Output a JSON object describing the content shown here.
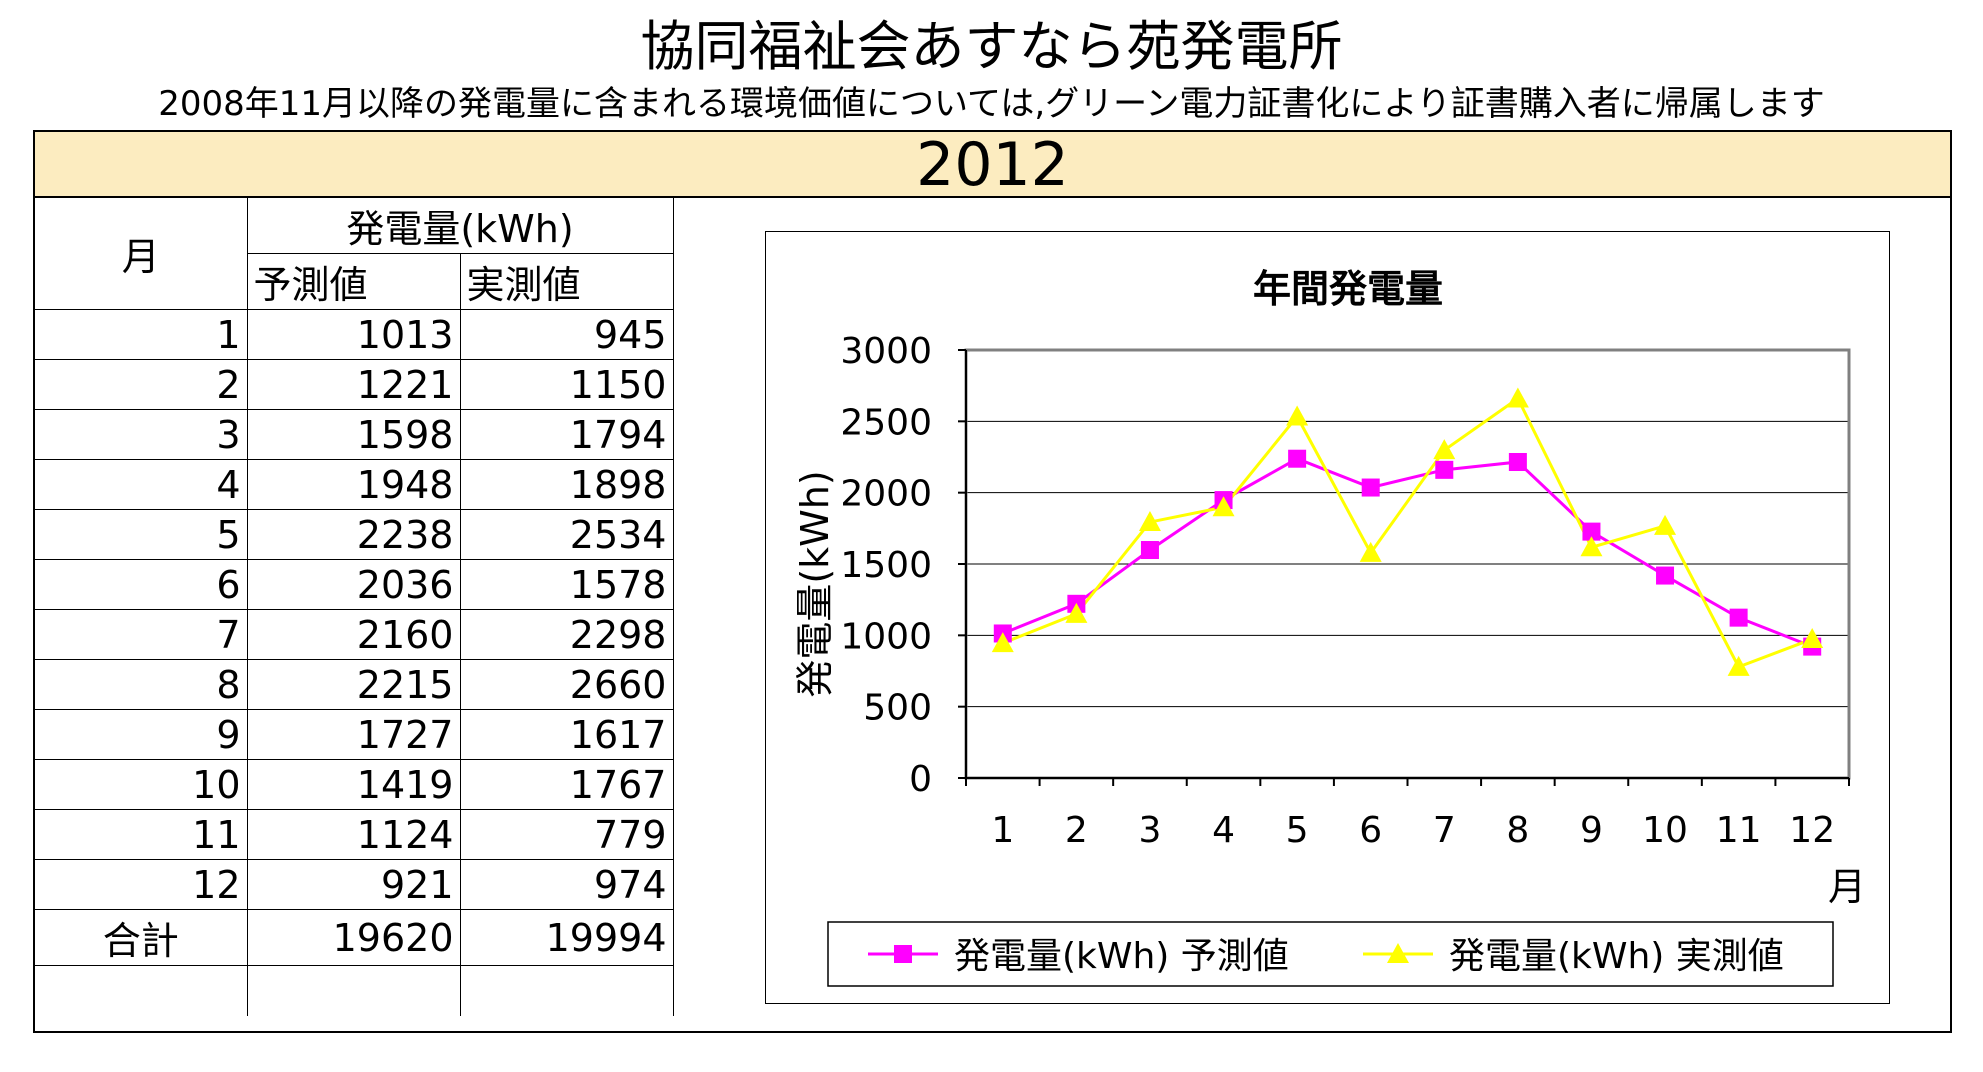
{
  "title": "協同福祉会あすなら苑発電所",
  "subtitle": "2008年11月以降の発電量に含まれる環境価値については,グリーン電力証書化により証書購入者に帰属します",
  "year": "2012",
  "table": {
    "month_header": "月",
    "group_header": "発電量(kWh)",
    "col_forecast": "予測値",
    "col_actual": "実測値",
    "rows": [
      {
        "month": "1",
        "forecast": "1013",
        "actual": "945"
      },
      {
        "month": "2",
        "forecast": "1221",
        "actual": "1150"
      },
      {
        "month": "3",
        "forecast": "1598",
        "actual": "1794"
      },
      {
        "month": "4",
        "forecast": "1948",
        "actual": "1898"
      },
      {
        "month": "5",
        "forecast": "2238",
        "actual": "2534"
      },
      {
        "month": "6",
        "forecast": "2036",
        "actual": "1578"
      },
      {
        "month": "7",
        "forecast": "2160",
        "actual": "2298"
      },
      {
        "month": "8",
        "forecast": "2215",
        "actual": "2660"
      },
      {
        "month": "9",
        "forecast": "1727",
        "actual": "1617"
      },
      {
        "month": "10",
        "forecast": "1419",
        "actual": "1767"
      },
      {
        "month": "11",
        "forecast": "1124",
        "actual": "779"
      },
      {
        "month": "12",
        "forecast": "921",
        "actual": "974"
      }
    ],
    "total_label": "合計",
    "total_forecast": "19620",
    "total_actual": "19994"
  },
  "chart_data": {
    "type": "line",
    "title": "年間発電量",
    "xlabel": "月",
    "ylabel": "発電量(kWh)",
    "categories": [
      "1",
      "2",
      "3",
      "4",
      "5",
      "6",
      "7",
      "8",
      "9",
      "10",
      "11",
      "12"
    ],
    "ylim": [
      0,
      3000
    ],
    "yticks": [
      0,
      500,
      1000,
      1500,
      2000,
      2500,
      3000
    ],
    "grid": true,
    "legend": "bottom",
    "series": [
      {
        "name": "発電量(kWh) 予測値",
        "color": "#ff00ff",
        "marker": "square",
        "values": [
          1013,
          1221,
          1598,
          1948,
          2238,
          2036,
          2160,
          2215,
          1727,
          1419,
          1124,
          921
        ]
      },
      {
        "name": "発電量(kWh) 実測値",
        "color": "#ffff00",
        "marker": "triangle",
        "values": [
          945,
          1150,
          1794,
          1898,
          2534,
          1578,
          2298,
          2660,
          1617,
          1767,
          779,
          974
        ]
      }
    ]
  }
}
